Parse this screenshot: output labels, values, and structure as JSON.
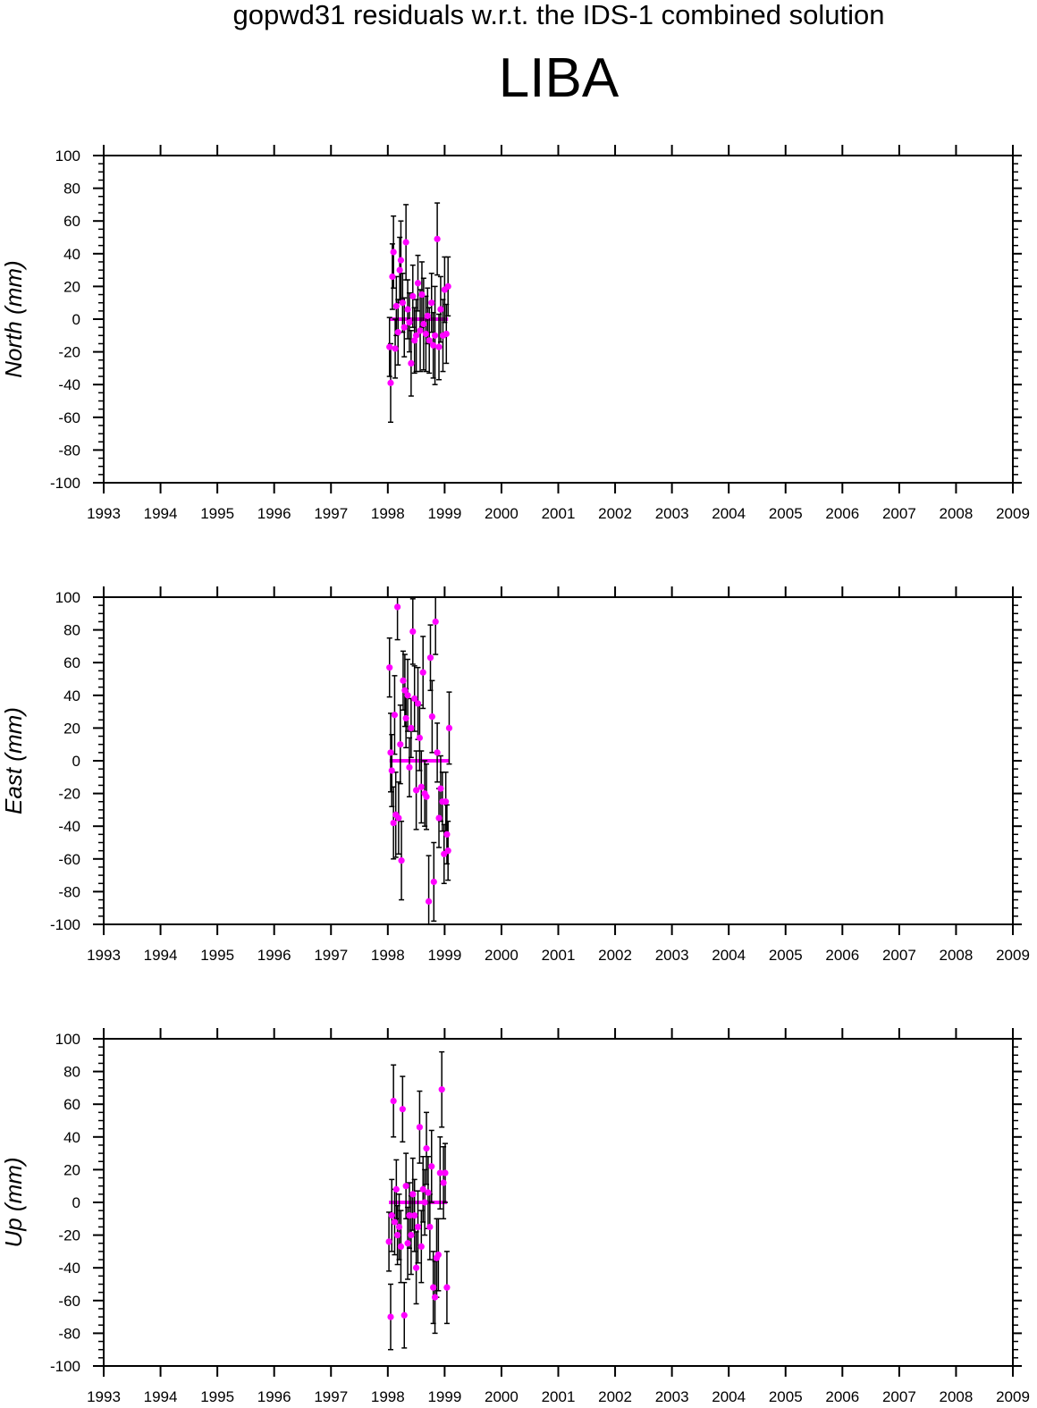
{
  "title": "gopwd31 residuals w.r.t. the IDS-1 combined solution",
  "station": "LIBA",
  "colors": {
    "point": "#ff00ff",
    "errorbar": "#000000",
    "axis": "#000000"
  },
  "chart_data": [
    {
      "type": "scatter",
      "component": "north",
      "ylabel": "North (mm)",
      "xlim": [
        1993,
        2009
      ],
      "ylim": [
        -100,
        100
      ],
      "xticks": [
        1993,
        1994,
        1995,
        1996,
        1997,
        1998,
        1999,
        2000,
        2001,
        2002,
        2003,
        2004,
        2005,
        2006,
        2007,
        2008,
        2009
      ],
      "yticks": [
        -100,
        -80,
        -60,
        -40,
        -20,
        0,
        20,
        40,
        60,
        80,
        100
      ],
      "grid": false,
      "points": [
        {
          "x": 1998.03,
          "y": -17,
          "err": 18
        },
        {
          "x": 1998.05,
          "y": -39,
          "err": 24
        },
        {
          "x": 1998.08,
          "y": 26,
          "err": 20
        },
        {
          "x": 1998.1,
          "y": 41,
          "err": 22
        },
        {
          "x": 1998.13,
          "y": -18,
          "err": 18
        },
        {
          "x": 1998.15,
          "y": 8,
          "err": 18
        },
        {
          "x": 1998.18,
          "y": -8,
          "err": 20
        },
        {
          "x": 1998.21,
          "y": 30,
          "err": 20
        },
        {
          "x": 1998.23,
          "y": 36,
          "err": 24
        },
        {
          "x": 1998.26,
          "y": 10,
          "err": 18
        },
        {
          "x": 1998.29,
          "y": -5,
          "err": 18
        },
        {
          "x": 1998.32,
          "y": 47,
          "err": 23
        },
        {
          "x": 1998.35,
          "y": 6,
          "err": 18
        },
        {
          "x": 1998.38,
          "y": -2,
          "err": 18
        },
        {
          "x": 1998.41,
          "y": -27,
          "err": 20
        },
        {
          "x": 1998.44,
          "y": 14,
          "err": 19
        },
        {
          "x": 1998.47,
          "y": -13,
          "err": 20
        },
        {
          "x": 1998.5,
          "y": -10,
          "err": 22
        },
        {
          "x": 1998.53,
          "y": 22,
          "err": 17
        },
        {
          "x": 1998.57,
          "y": -7,
          "err": 25
        },
        {
          "x": 1998.6,
          "y": 15,
          "err": 20
        },
        {
          "x": 1998.63,
          "y": -3,
          "err": 28
        },
        {
          "x": 1998.67,
          "y": -9,
          "err": 23
        },
        {
          "x": 1998.7,
          "y": 2,
          "err": 17
        },
        {
          "x": 1998.73,
          "y": -13,
          "err": 20
        },
        {
          "x": 1998.77,
          "y": 10,
          "err": 18
        },
        {
          "x": 1998.8,
          "y": -16,
          "err": 20
        },
        {
          "x": 1998.83,
          "y": -10,
          "err": 30
        },
        {
          "x": 1998.87,
          "y": 49,
          "err": 22
        },
        {
          "x": 1998.9,
          "y": -17,
          "err": 20
        },
        {
          "x": 1998.93,
          "y": 6,
          "err": 20
        },
        {
          "x": 1998.97,
          "y": -10,
          "err": 22
        },
        {
          "x": 1999.0,
          "y": 18,
          "err": 20
        },
        {
          "x": 1999.03,
          "y": -9,
          "err": 18
        },
        {
          "x": 1999.06,
          "y": 20,
          "err": 18
        }
      ]
    },
    {
      "type": "scatter",
      "component": "east",
      "ylabel": "East (mm)",
      "xlim": [
        1993,
        2009
      ],
      "ylim": [
        -100,
        100
      ],
      "xticks": [
        1993,
        1994,
        1995,
        1996,
        1997,
        1998,
        1999,
        2000,
        2001,
        2002,
        2003,
        2004,
        2005,
        2006,
        2007,
        2008,
        2009
      ],
      "yticks": [
        -100,
        -80,
        -60,
        -40,
        -20,
        0,
        20,
        40,
        60,
        80,
        100
      ],
      "grid": false,
      "points": [
        {
          "x": 1998.03,
          "y": 57,
          "err": 18
        },
        {
          "x": 1998.05,
          "y": 5,
          "err": 24
        },
        {
          "x": 1998.07,
          "y": -6,
          "err": 22
        },
        {
          "x": 1998.1,
          "y": -38,
          "err": 22
        },
        {
          "x": 1998.12,
          "y": 28,
          "err": 24
        },
        {
          "x": 1998.14,
          "y": -33,
          "err": 26
        },
        {
          "x": 1998.17,
          "y": 94,
          "err": 20
        },
        {
          "x": 1998.19,
          "y": -35,
          "err": 22
        },
        {
          "x": 1998.22,
          "y": 10,
          "err": 24
        },
        {
          "x": 1998.24,
          "y": -61,
          "err": 24
        },
        {
          "x": 1998.27,
          "y": 49,
          "err": 18
        },
        {
          "x": 1998.3,
          "y": 43,
          "err": 22
        },
        {
          "x": 1998.32,
          "y": 26,
          "err": 18
        },
        {
          "x": 1998.35,
          "y": 40,
          "err": 22
        },
        {
          "x": 1998.38,
          "y": -4,
          "err": 18
        },
        {
          "x": 1998.41,
          "y": 20,
          "err": 18
        },
        {
          "x": 1998.44,
          "y": 79,
          "err": 20
        },
        {
          "x": 1998.47,
          "y": 38,
          "err": 20
        },
        {
          "x": 1998.5,
          "y": -18,
          "err": 24
        },
        {
          "x": 1998.53,
          "y": 35,
          "err": 22
        },
        {
          "x": 1998.56,
          "y": 14,
          "err": 20
        },
        {
          "x": 1998.59,
          "y": -16,
          "err": 22
        },
        {
          "x": 1998.62,
          "y": 54,
          "err": 22
        },
        {
          "x": 1998.65,
          "y": -20,
          "err": 20
        },
        {
          "x": 1998.68,
          "y": -22,
          "err": 20
        },
        {
          "x": 1998.72,
          "y": -86,
          "err": 28
        },
        {
          "x": 1998.75,
          "y": 63,
          "err": 20
        },
        {
          "x": 1998.78,
          "y": 27,
          "err": 22
        },
        {
          "x": 1998.81,
          "y": -74,
          "err": 24
        },
        {
          "x": 1998.84,
          "y": 85,
          "err": 20
        },
        {
          "x": 1998.87,
          "y": 5,
          "err": 18
        },
        {
          "x": 1998.9,
          "y": -35,
          "err": 18
        },
        {
          "x": 1998.93,
          "y": -17,
          "err": 20
        },
        {
          "x": 1998.96,
          "y": -25,
          "err": 18
        },
        {
          "x": 1998.99,
          "y": -57,
          "err": 18
        },
        {
          "x": 1999.02,
          "y": -25,
          "err": 18
        },
        {
          "x": 1999.04,
          "y": -45,
          "err": 18
        },
        {
          "x": 1999.06,
          "y": -55,
          "err": 18
        },
        {
          "x": 1999.08,
          "y": 20,
          "err": 22
        }
      ]
    },
    {
      "type": "scatter",
      "component": "up",
      "ylabel": "Up (mm)",
      "xlim": [
        1993,
        2009
      ],
      "ylim": [
        -100,
        100
      ],
      "xticks": [
        1993,
        1994,
        1995,
        1996,
        1997,
        1998,
        1999,
        2000,
        2001,
        2002,
        2003,
        2004,
        2005,
        2006,
        2007,
        2008,
        2009
      ],
      "yticks": [
        -100,
        -80,
        -60,
        -40,
        -20,
        0,
        20,
        40,
        60,
        80,
        100
      ],
      "grid": false,
      "points": [
        {
          "x": 1998.02,
          "y": -24,
          "err": 18
        },
        {
          "x": 1998.05,
          "y": -70,
          "err": 20
        },
        {
          "x": 1998.07,
          "y": -8,
          "err": 22
        },
        {
          "x": 1998.1,
          "y": 62,
          "err": 22
        },
        {
          "x": 1998.12,
          "y": -12,
          "err": 20
        },
        {
          "x": 1998.15,
          "y": 8,
          "err": 18
        },
        {
          "x": 1998.17,
          "y": -20,
          "err": 18
        },
        {
          "x": 1998.2,
          "y": -15,
          "err": 20
        },
        {
          "x": 1998.23,
          "y": -27,
          "err": 22
        },
        {
          "x": 1998.26,
          "y": 57,
          "err": 20
        },
        {
          "x": 1998.29,
          "y": -69,
          "err": 20
        },
        {
          "x": 1998.32,
          "y": 10,
          "err": 20
        },
        {
          "x": 1998.35,
          "y": -25,
          "err": 22
        },
        {
          "x": 1998.38,
          "y": -8,
          "err": 20
        },
        {
          "x": 1998.41,
          "y": -20,
          "err": 24
        },
        {
          "x": 1998.44,
          "y": 5,
          "err": 22
        },
        {
          "x": 1998.47,
          "y": -8,
          "err": 22
        },
        {
          "x": 1998.5,
          "y": -40,
          "err": 22
        },
        {
          "x": 1998.53,
          "y": -15,
          "err": 22
        },
        {
          "x": 1998.56,
          "y": 46,
          "err": 22
        },
        {
          "x": 1998.59,
          "y": -27,
          "err": 22
        },
        {
          "x": 1998.62,
          "y": 8,
          "err": 20
        },
        {
          "x": 1998.65,
          "y": 0,
          "err": 20
        },
        {
          "x": 1998.68,
          "y": 33,
          "err": 22
        },
        {
          "x": 1998.71,
          "y": 6,
          "err": 22
        },
        {
          "x": 1998.74,
          "y": -15,
          "err": 20
        },
        {
          "x": 1998.77,
          "y": 22,
          "err": 22
        },
        {
          "x": 1998.8,
          "y": -52,
          "err": 22
        },
        {
          "x": 1998.83,
          "y": -58,
          "err": 22
        },
        {
          "x": 1998.86,
          "y": -34,
          "err": 24
        },
        {
          "x": 1998.89,
          "y": -32,
          "err": 22
        },
        {
          "x": 1998.92,
          "y": 18,
          "err": 22
        },
        {
          "x": 1998.95,
          "y": 69,
          "err": 23
        },
        {
          "x": 1998.98,
          "y": 12,
          "err": 22
        },
        {
          "x": 1999.01,
          "y": 18,
          "err": 18
        },
        {
          "x": 1999.04,
          "y": -52,
          "err": 22
        }
      ]
    }
  ]
}
